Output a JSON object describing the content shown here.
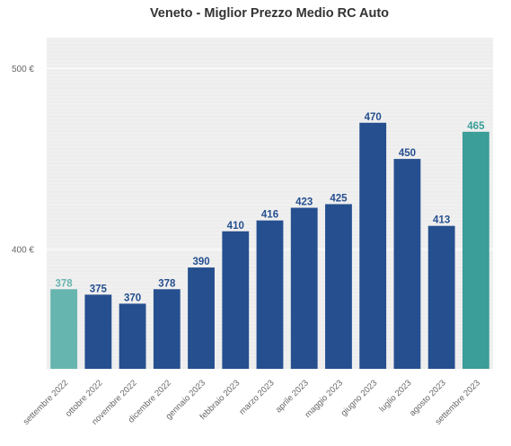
{
  "chart_data": {
    "type": "bar",
    "title": "Veneto - Miglior Prezzo Medio RC Auto",
    "xlabel": "",
    "ylabel": "",
    "categories": [
      "settembre 2022",
      "ottobre 2022",
      "novembre 2022",
      "dicembre 2022",
      "gennaio 2023",
      "febbraio 2023",
      "marzo 2023",
      "aprile 2023",
      "maggio 2023",
      "giugno 2023",
      "luglio 2023",
      "agosto 2023",
      "settembre 2023"
    ],
    "values": [
      378,
      375,
      370,
      378,
      390,
      410,
      416,
      423,
      425,
      470,
      450,
      413,
      465
    ],
    "value_labels": [
      "378",
      "375",
      "370",
      "378",
      "390",
      "410",
      "416",
      "423",
      "425",
      "470",
      "450",
      "413",
      "465"
    ],
    "ylim": [
      334,
      517
    ],
    "yticks": [
      400,
      500
    ],
    "ytick_labels": [
      "400 €",
      "500 €"
    ],
    "grid": true,
    "colors": {
      "default": "#254f8f",
      "first": "#66b5ae",
      "last": "#3b9e98",
      "label_default": "#254f8f",
      "label_first": "#66b5ae",
      "label_last": "#3b9e98",
      "background": "#ededed",
      "grid": "#ffffff"
    },
    "bar_color_keys": [
      "first",
      "default",
      "default",
      "default",
      "default",
      "default",
      "default",
      "default",
      "default",
      "default",
      "default",
      "default",
      "last"
    ]
  }
}
